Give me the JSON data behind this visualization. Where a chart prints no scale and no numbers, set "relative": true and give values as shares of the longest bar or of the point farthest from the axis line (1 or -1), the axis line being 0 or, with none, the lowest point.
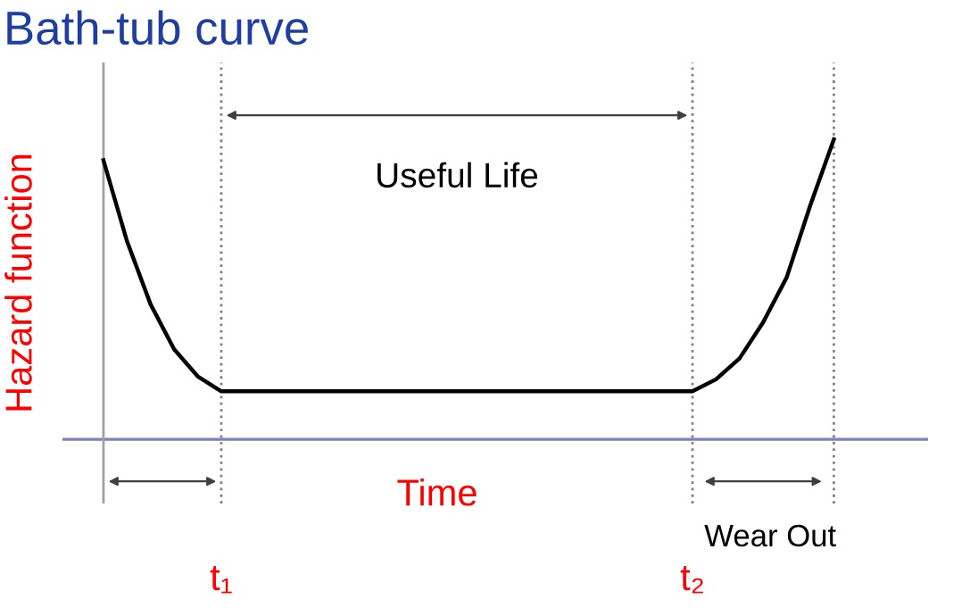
{
  "chart_data": {
    "type": "line",
    "relative": true,
    "title": "Bath-tub curve",
    "xlabel": "Time",
    "ylabel": "Hazard function",
    "categories": [
      null,
      null,
      null,
      null,
      null,
      "t₁",
      null,
      null,
      null,
      null,
      null,
      null,
      null,
      null,
      null,
      null,
      null,
      null,
      null,
      null,
      null,
      null,
      null,
      null,
      null,
      "t₂",
      null,
      null,
      null,
      null,
      null,
      null
    ],
    "series": [
      {
        "color": "#000000",
        "values": [
          0.93,
          0.66,
          0.45,
          0.3,
          0.21,
          0.16,
          0.16,
          0.16,
          0.16,
          0.16,
          0.16,
          0.16,
          0.16,
          0.16,
          0.16,
          0.16,
          0.16,
          0.16,
          0.16,
          0.16,
          0.16,
          0.16,
          0.16,
          0.16,
          0.16,
          0.16,
          0.2,
          0.27,
          0.39,
          0.54,
          0.78,
          1.0
        ]
      }
    ],
    "ref_lines": [
      {
        "axis": "x",
        "line_style": "dotted",
        "color": "#808080"
      }
    ],
    "annotations": [
      "Useful Life",
      "Wear Out"
    ],
    "legend": false,
    "grid": "x",
    "marker": "none",
    "line_style": "solid"
  }
}
